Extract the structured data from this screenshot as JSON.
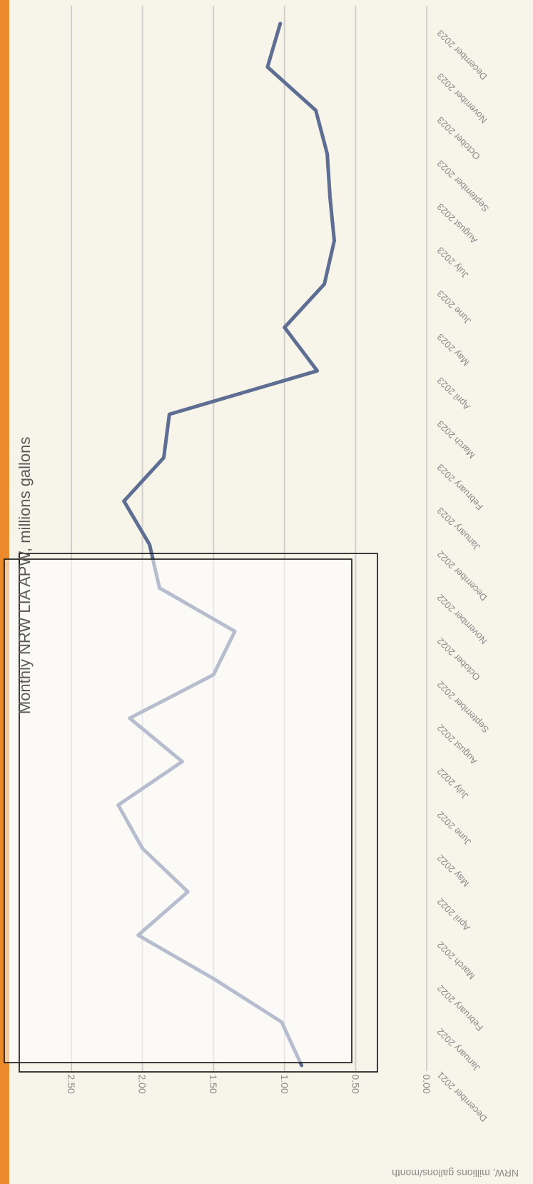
{
  "chart_data": {
    "type": "line",
    "title": "Monthly NRW LIA APW, millions gallons",
    "ylabel": "NRW, millions gallons/month",
    "xlabel": "",
    "ylim": [
      0,
      2.5
    ],
    "yticks": [
      "0.00",
      "0.50",
      "1.00",
      "1.50",
      "2.00",
      "2.50"
    ],
    "grid": true,
    "orientation": "rotated-90-clockwise",
    "categories": [
      "December 2021",
      "January 2022",
      "February 2022",
      "March 2022",
      "April 2022",
      "May 2022",
      "June 2022",
      "July 2022",
      "August 2022",
      "September 2022",
      "October 2022",
      "November 2022",
      "December 2022",
      "January 2023",
      "February 2023",
      "March 2023",
      "April 2023",
      "May 2023",
      "June 2023",
      "July 2023",
      "August 2023",
      "September 2023",
      "October 2023",
      "November 2023",
      "December 2023"
    ],
    "series": [
      {
        "values": [
          0.88,
          1.02,
          1.5,
          2.03,
          1.68,
          2.0,
          2.17,
          1.72,
          2.09,
          1.5,
          1.35,
          1.88,
          1.95,
          2.13,
          1.85,
          1.81,
          0.77,
          1.0,
          0.72,
          0.65,
          0.68,
          0.7,
          0.78,
          1.12,
          1.03
        ],
        "color": "#5d6e92"
      }
    ]
  }
}
